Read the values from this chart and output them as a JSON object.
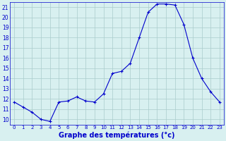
{
  "hours": [
    0,
    1,
    2,
    3,
    4,
    5,
    6,
    7,
    8,
    9,
    10,
    11,
    12,
    13,
    14,
    15,
    16,
    17,
    18,
    19,
    20,
    21,
    22,
    23
  ],
  "temperatures": [
    11.7,
    11.2,
    10.7,
    10.0,
    9.8,
    11.7,
    11.8,
    12.2,
    11.8,
    11.7,
    12.5,
    14.5,
    14.7,
    15.5,
    18.0,
    20.5,
    21.3,
    21.3,
    21.2,
    19.3,
    16.0,
    14.0,
    12.7,
    11.7
  ],
  "line_color": "#0000cc",
  "marker": "+",
  "marker_size": 3,
  "bg_color": "#d8f0f0",
  "grid_color": "#aacccc",
  "xlabel": "Graphe des températures (°c)",
  "xlabel_color": "#0000cc",
  "ylim": [
    9.5,
    21.5
  ],
  "ytick_min": 10,
  "ytick_max": 21,
  "xticks": [
    0,
    1,
    2,
    3,
    4,
    5,
    6,
    7,
    8,
    9,
    10,
    11,
    12,
    13,
    14,
    15,
    16,
    17,
    18,
    19,
    20,
    21,
    22,
    23
  ],
  "tick_label_color": "#0000cc",
  "axis_color": "#0000cc",
  "spine_color": "#0000cc"
}
